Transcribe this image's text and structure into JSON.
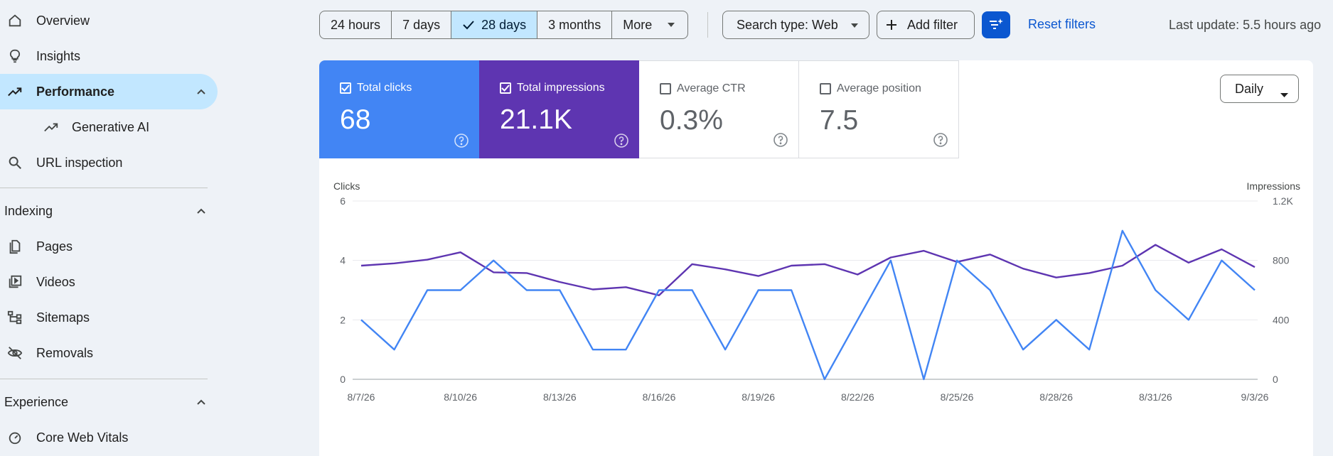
{
  "sidebar": {
    "items": [
      {
        "label": "Overview",
        "icon": "home-icon"
      },
      {
        "label": "Insights",
        "icon": "lightbulb-icon"
      },
      {
        "label": "Performance",
        "icon": "trending-up-icon"
      },
      {
        "label": "Generative AI",
        "icon": "trending-up-icon"
      },
      {
        "label": "URL inspection",
        "icon": "search-icon"
      }
    ],
    "sections": {
      "indexing": {
        "label": "Indexing",
        "items": [
          {
            "label": "Pages",
            "icon": "pages-icon"
          },
          {
            "label": "Videos",
            "icon": "video-icon"
          },
          {
            "label": "Sitemaps",
            "icon": "sitemap-icon"
          },
          {
            "label": "Removals",
            "icon": "eye-off-icon"
          }
        ]
      },
      "experience": {
        "label": "Experience",
        "items": [
          {
            "label": "Core Web Vitals",
            "icon": "gauge-icon"
          }
        ]
      }
    }
  },
  "toolbar": {
    "ranges": [
      "24 hours",
      "7 days",
      "28 days",
      "3 months"
    ],
    "selected_range": "28 days",
    "more": "More",
    "search_type": "Search type: Web",
    "add_filter": "Add filter",
    "reset_filters": "Reset filters",
    "last_update": "Last update: 5.5 hours ago"
  },
  "metrics": {
    "clicks": {
      "label": "Total clicks",
      "value": "68",
      "checked": true,
      "color": "#4285f4"
    },
    "impressions": {
      "label": "Total impressions",
      "value": "21.1K",
      "checked": true,
      "color": "#5e35b1"
    },
    "ctr": {
      "label": "Average CTR",
      "value": "0.3%",
      "checked": false
    },
    "position": {
      "label": "Average position",
      "value": "7.5",
      "checked": false
    }
  },
  "granularity": "Daily",
  "chart_data": {
    "type": "line",
    "left_axis_label": "Clicks",
    "right_axis_label": "Impressions",
    "left_ticks": [
      "0",
      "2",
      "4",
      "6"
    ],
    "right_ticks": [
      "0",
      "400",
      "800",
      "1.2K"
    ],
    "left_ylim": [
      0,
      6
    ],
    "right_ylim": [
      0,
      1200
    ],
    "x_tick_labels": [
      "8/7/26",
      "8/10/26",
      "8/13/26",
      "8/16/26",
      "8/19/26",
      "8/22/26",
      "8/25/26",
      "8/28/26",
      "8/31/26",
      "9/3/26"
    ],
    "x": [
      "8/7/26",
      "8/8/26",
      "8/9/26",
      "8/10/26",
      "8/11/26",
      "8/12/26",
      "8/13/26",
      "8/14/26",
      "8/15/26",
      "8/16/26",
      "8/17/26",
      "8/18/26",
      "8/19/26",
      "8/20/26",
      "8/21/26",
      "8/22/26",
      "8/23/26",
      "8/24/26",
      "8/25/26",
      "8/26/26",
      "8/27/26",
      "8/28/26",
      "8/29/26",
      "8/30/26",
      "8/31/26",
      "9/1/26",
      "9/2/26",
      "9/3/26"
    ],
    "grid": true,
    "series": [
      {
        "name": "Clicks",
        "axis": "left",
        "color": "#4285f4",
        "values": [
          2,
          1,
          3,
          3,
          4,
          3,
          3,
          1,
          1,
          3,
          3,
          1,
          3,
          3,
          0,
          2,
          4,
          0,
          4,
          3,
          1,
          2,
          1,
          5,
          3,
          2,
          4,
          3
        ]
      },
      {
        "name": "Impressions",
        "axis": "right",
        "color": "#5e35b1",
        "values": [
          765,
          780,
          805,
          855,
          720,
          715,
          655,
          605,
          620,
          565,
          775,
          740,
          695,
          765,
          775,
          705,
          820,
          865,
          790,
          840,
          745,
          685,
          715,
          765,
          905,
          785,
          875,
          755
        ]
      }
    ]
  }
}
